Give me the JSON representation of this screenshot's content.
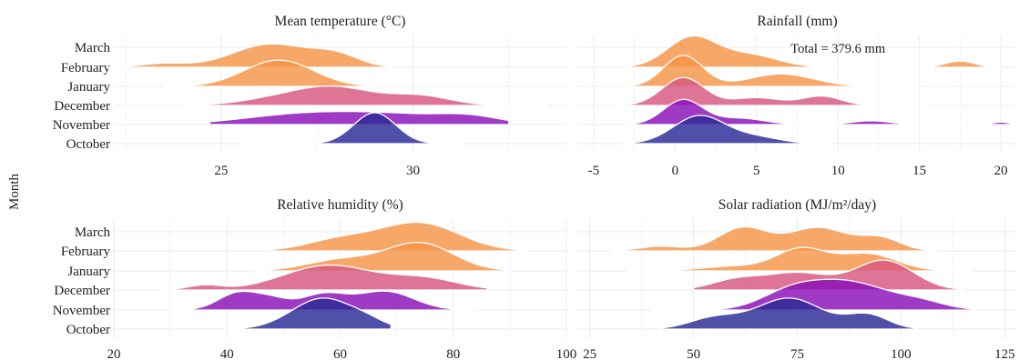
{
  "chart_data": {
    "type": "ridgeline",
    "y_axis_title": "Month",
    "months": [
      "October",
      "November",
      "December",
      "January",
      "February",
      "March"
    ],
    "month_colors": [
      "#2a2a95",
      "#8a0fb8",
      "#d8577f",
      "#f59447",
      "#f0f424"
    ],
    "colors": {
      "October": "#2a2a95",
      "November": "#8a0fb8",
      "December": "#d8577f",
      "January": "#f59447",
      "February": "#f59447",
      "March": "#f0f424"
    },
    "panels": [
      {
        "id": "temperature",
        "title": "Mean temperature (°C)",
        "xlim": [
          22.2,
          34.0
        ],
        "x_ticks": [
          25,
          30
        ],
        "x_tick_labels": [
          "25",
          "30"
        ],
        "annotation": "",
        "series": [
          {
            "month": "October",
            "peaks": [
              {
                "c": 29.0,
                "h": 1.0,
                "s": 0.55
              }
            ],
            "range": [
              25.5,
              31.3
            ]
          },
          {
            "month": "November",
            "peaks": [
              {
                "c": 27.0,
                "h": 0.3,
                "s": 1.5
              },
              {
                "c": 29.5,
                "h": 0.3,
                "s": 1.5
              },
              {
                "c": 31.5,
                "h": 0.2,
                "s": 0.8
              }
            ],
            "range": [
              24.7,
              32.5
            ]
          },
          {
            "month": "December",
            "peaks": [
              {
                "c": 28.0,
                "h": 0.55,
                "s": 1.0
              },
              {
                "c": 30.2,
                "h": 0.3,
                "s": 0.8
              },
              {
                "c": 26.5,
                "h": 0.2,
                "s": 1.0
              }
            ],
            "range": [
              24.0,
              33.5
            ]
          },
          {
            "month": "January",
            "peaks": [
              {
                "c": 26.5,
                "h": 0.85,
                "s": 0.9
              }
            ],
            "range": [
              23.5,
              29.0
            ]
          },
          {
            "month": "February",
            "peaks": [
              {
                "c": 26.3,
                "h": 0.75,
                "s": 1.0
              },
              {
                "c": 28.0,
                "h": 0.35,
                "s": 0.6
              },
              {
                "c": 23.5,
                "h": 0.12,
                "s": 0.6
              }
            ],
            "range": [
              22.0,
              29.5
            ]
          }
        ]
      },
      {
        "id": "rainfall",
        "title": "Rainfall (mm)",
        "xlim": [
          -6.0,
          21.0
        ],
        "x_ticks": [
          -5,
          0,
          5,
          10,
          15,
          20
        ],
        "x_tick_labels": [
          "-5",
          "0",
          "5",
          "10",
          "15",
          "20"
        ],
        "annotation": "Total = 379.6 mm",
        "series": [
          {
            "month": "October",
            "peaks": [
              {
                "c": 1.5,
                "h": 0.9,
                "s": 1.6
              },
              {
                "c": 5.0,
                "h": 0.2,
                "s": 1.5
              }
            ],
            "range": [
              -3.2,
              9.5
            ]
          },
          {
            "month": "November",
            "peaks": [
              {
                "c": 0.5,
                "h": 0.8,
                "s": 1.2
              },
              {
                "c": 4.0,
                "h": 0.2,
                "s": 1.5
              },
              {
                "c": 12.0,
                "h": 0.12,
                "s": 1.2
              },
              {
                "c": 20.0,
                "h": 0.08,
                "s": 0.5
              }
            ],
            "range": [
              -3.0,
              21.0
            ]
          },
          {
            "month": "December",
            "peaks": [
              {
                "c": 0.5,
                "h": 0.9,
                "s": 1.3
              },
              {
                "c": 5.0,
                "h": 0.25,
                "s": 1.5
              },
              {
                "c": 9.0,
                "h": 0.3,
                "s": 1.2
              }
            ],
            "range": [
              -3.5,
              15.5
            ]
          },
          {
            "month": "January",
            "peaks": [
              {
                "c": 0.5,
                "h": 1.0,
                "s": 1.2
              },
              {
                "c": 6.5,
                "h": 0.4,
                "s": 2.0
              }
            ],
            "range": [
              -3.0,
              15.0
            ]
          },
          {
            "month": "February",
            "peaks": [
              {
                "c": 1.0,
                "h": 0.95,
                "s": 1.5
              },
              {
                "c": 4.5,
                "h": 0.4,
                "s": 1.8
              },
              {
                "c": 17.5,
                "h": 0.2,
                "s": 0.9
              }
            ],
            "range": [
              -3.2,
              20.0
            ]
          }
        ]
      },
      {
        "id": "humidity",
        "title": "Relative humidity (%)",
        "xlim": [
          20,
          100
        ],
        "x_ticks": [
          20,
          40,
          60,
          80,
          100
        ],
        "x_tick_labels": [
          "20",
          "40",
          "60",
          "80",
          "100"
        ],
        "annotation": "",
        "series": [
          {
            "month": "October",
            "peaks": [
              {
                "c": 57,
                "h": 1.0,
                "s": 5.5
              },
              {
                "c": 65,
                "h": 0.15,
                "s": 3.0
              }
            ],
            "range": [
              40,
              69
            ]
          },
          {
            "month": "November",
            "peaks": [
              {
                "c": 42,
                "h": 0.55,
                "s": 3.5
              },
              {
                "c": 57,
                "h": 0.5,
                "s": 4.0
              },
              {
                "c": 68,
                "h": 0.6,
                "s": 5.0
              },
              {
                "c": 48,
                "h": 0.3,
                "s": 3.0
              }
            ],
            "range": [
              30,
              84
            ]
          },
          {
            "month": "December",
            "peaks": [
              {
                "c": 58,
                "h": 0.8,
                "s": 8.0
              },
              {
                "c": 36,
                "h": 0.15,
                "s": 3.0
              },
              {
                "c": 75,
                "h": 0.35,
                "s": 6.0
              }
            ],
            "range": [
              28,
              86
            ]
          },
          {
            "month": "January",
            "peaks": [
              {
                "c": 74,
                "h": 0.9,
                "s": 6.0
              },
              {
                "c": 60,
                "h": 0.35,
                "s": 6.0
              }
            ],
            "range": [
              45,
              90
            ]
          },
          {
            "month": "February",
            "peaks": [
              {
                "c": 74,
                "h": 0.9,
                "s": 7.0
              },
              {
                "c": 60,
                "h": 0.35,
                "s": 6.0
              }
            ],
            "range": [
              48,
              93
            ]
          }
        ]
      },
      {
        "id": "solar",
        "title": "Solar radiation (MJ/m²/day)",
        "xlim": [
          22,
          128
        ],
        "x_ticks": [
          25,
          50,
          75,
          100,
          125
        ],
        "x_tick_labels": [
          "25",
          "50",
          "75",
          "100",
          "125"
        ],
        "annotation": "",
        "series": [
          {
            "month": "October",
            "peaks": [
              {
                "c": 73,
                "h": 1.0,
                "s": 8.0
              },
              {
                "c": 55,
                "h": 0.35,
                "s": 6.0
              },
              {
                "c": 92,
                "h": 0.45,
                "s": 5.0
              }
            ],
            "range": [
              42,
              104
            ]
          },
          {
            "month": "November",
            "peaks": [
              {
                "c": 87,
                "h": 0.9,
                "s": 10.0
              },
              {
                "c": 73,
                "h": 0.45,
                "s": 7.0
              },
              {
                "c": 105,
                "h": 0.2,
                "s": 6.0
              }
            ],
            "range": [
              40,
              118
            ]
          },
          {
            "month": "December",
            "peaks": [
              {
                "c": 96,
                "h": 0.95,
                "s": 7.0
              },
              {
                "c": 75,
                "h": 0.55,
                "s": 8.0
              },
              {
                "c": 60,
                "h": 0.3,
                "s": 6.0
              }
            ],
            "range": [
              50,
              115
            ]
          },
          {
            "month": "January",
            "peaks": [
              {
                "c": 76,
                "h": 0.7,
                "s": 6.0
              },
              {
                "c": 92,
                "h": 0.55,
                "s": 7.0
              },
              {
                "c": 60,
                "h": 0.15,
                "s": 8.0
              }
            ],
            "range": [
              34,
              117
            ]
          },
          {
            "month": "February",
            "peaks": [
              {
                "c": 62,
                "h": 0.75,
                "s": 6.0
              },
              {
                "c": 80,
                "h": 0.75,
                "s": 7.0
              },
              {
                "c": 95,
                "h": 0.4,
                "s": 5.0
              },
              {
                "c": 42,
                "h": 0.15,
                "s": 5.0
              }
            ],
            "range": [
              30,
              109
            ]
          }
        ]
      }
    ]
  }
}
